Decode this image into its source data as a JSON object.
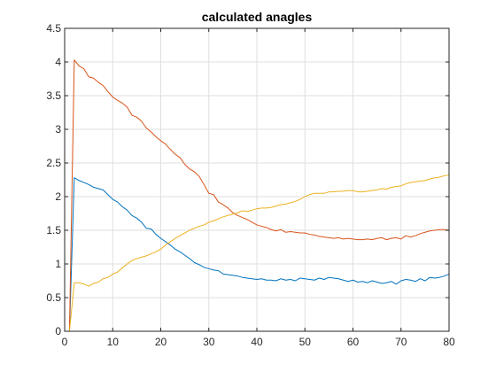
{
  "chart_data": {
    "type": "line",
    "title": "calculated anagles",
    "xlabel": "",
    "ylabel": "",
    "xlim": [
      0,
      80
    ],
    "ylim": [
      0,
      4.5
    ],
    "x_ticks": [
      0,
      10,
      20,
      30,
      40,
      50,
      60,
      70,
      80
    ],
    "y_ticks": [
      0,
      0.5,
      1,
      1.5,
      2,
      2.5,
      3,
      3.5,
      4,
      4.5
    ],
    "x_tick_labels": [
      "0",
      "10",
      "20",
      "30",
      "40",
      "50",
      "60",
      "70",
      "80"
    ],
    "y_tick_labels": [
      "0",
      "0.5",
      "1",
      "1.5",
      "2",
      "2.5",
      "3",
      "3.5",
      "4",
      "4.5"
    ],
    "grid": true,
    "legend": "none",
    "series": [
      {
        "color": "#0072BD",
        "x": [
          1,
          2,
          3,
          4,
          5,
          6,
          7,
          8,
          9,
          10,
          11,
          12,
          13,
          14,
          15,
          16,
          17,
          18,
          19,
          20,
          21,
          22,
          23,
          24,
          25,
          26,
          27,
          28,
          29,
          30,
          31,
          32,
          33,
          34,
          35,
          36,
          37,
          38,
          39,
          40,
          41,
          42,
          43,
          44,
          45,
          46,
          47,
          48,
          49,
          50,
          51,
          52,
          53,
          54,
          55,
          56,
          57,
          58,
          59,
          60,
          61,
          62,
          63,
          64,
          65,
          66,
          67,
          68,
          69,
          70,
          71,
          72,
          73,
          74,
          75,
          76,
          77,
          78,
          79,
          80
        ],
        "values": [
          0,
          2.28,
          2.24,
          2.21,
          2.18,
          2.14,
          2.12,
          2.1,
          2.03,
          1.96,
          1.92,
          1.85,
          1.8,
          1.72,
          1.68,
          1.62,
          1.53,
          1.52,
          1.44,
          1.38,
          1.33,
          1.28,
          1.22,
          1.18,
          1.13,
          1.08,
          1.02,
          0.99,
          0.95,
          0.93,
          0.91,
          0.9,
          0.85,
          0.84,
          0.83,
          0.82,
          0.8,
          0.79,
          0.78,
          0.77,
          0.78,
          0.76,
          0.76,
          0.75,
          0.78,
          0.76,
          0.77,
          0.75,
          0.79,
          0.78,
          0.77,
          0.76,
          0.79,
          0.77,
          0.8,
          0.79,
          0.78,
          0.76,
          0.74,
          0.76,
          0.73,
          0.74,
          0.72,
          0.75,
          0.73,
          0.71,
          0.72,
          0.74,
          0.7,
          0.75,
          0.77,
          0.76,
          0.74,
          0.78,
          0.75,
          0.8,
          0.79,
          0.8,
          0.82,
          0.85
        ]
      },
      {
        "color": "#D95319",
        "x": [
          1,
          2,
          3,
          4,
          5,
          6,
          7,
          8,
          9,
          10,
          11,
          12,
          13,
          14,
          15,
          16,
          17,
          18,
          19,
          20,
          21,
          22,
          23,
          24,
          25,
          26,
          27,
          28,
          29,
          30,
          31,
          32,
          33,
          34,
          35,
          36,
          37,
          38,
          39,
          40,
          41,
          42,
          43,
          44,
          45,
          46,
          47,
          48,
          49,
          50,
          51,
          52,
          53,
          54,
          55,
          56,
          57,
          58,
          59,
          60,
          61,
          62,
          63,
          64,
          65,
          66,
          67,
          68,
          69,
          70,
          71,
          72,
          73,
          74,
          75,
          76,
          77,
          78,
          79,
          80
        ],
        "values": [
          0,
          4.03,
          3.94,
          3.9,
          3.78,
          3.76,
          3.7,
          3.65,
          3.56,
          3.48,
          3.43,
          3.39,
          3.33,
          3.21,
          3.18,
          3.12,
          3.02,
          2.96,
          2.89,
          2.83,
          2.78,
          2.7,
          2.63,
          2.58,
          2.48,
          2.41,
          2.37,
          2.3,
          2.18,
          2.05,
          2.03,
          1.92,
          1.88,
          1.83,
          1.76,
          1.72,
          1.69,
          1.66,
          1.62,
          1.58,
          1.56,
          1.54,
          1.51,
          1.49,
          1.51,
          1.47,
          1.48,
          1.47,
          1.46,
          1.46,
          1.44,
          1.43,
          1.41,
          1.4,
          1.39,
          1.38,
          1.39,
          1.37,
          1.38,
          1.37,
          1.36,
          1.36,
          1.37,
          1.36,
          1.38,
          1.39,
          1.36,
          1.38,
          1.39,
          1.37,
          1.42,
          1.4,
          1.42,
          1.45,
          1.47,
          1.49,
          1.5,
          1.51,
          1.51,
          1.5
        ]
      },
      {
        "color": "#EDB120",
        "x": [
          1,
          2,
          3,
          4,
          5,
          6,
          7,
          8,
          9,
          10,
          11,
          12,
          13,
          14,
          15,
          16,
          17,
          18,
          19,
          20,
          21,
          22,
          23,
          24,
          25,
          26,
          27,
          28,
          29,
          30,
          31,
          32,
          33,
          34,
          35,
          36,
          37,
          38,
          39,
          40,
          41,
          42,
          43,
          44,
          45,
          46,
          47,
          48,
          49,
          50,
          51,
          52,
          53,
          54,
          55,
          56,
          57,
          58,
          59,
          60,
          61,
          62,
          63,
          64,
          65,
          66,
          67,
          68,
          69,
          70,
          71,
          72,
          73,
          74,
          75,
          76,
          77,
          78,
          79,
          80
        ],
        "values": [
          0,
          0.72,
          0.72,
          0.7,
          0.67,
          0.71,
          0.73,
          0.78,
          0.8,
          0.85,
          0.88,
          0.94,
          1.0,
          1.05,
          1.08,
          1.1,
          1.12,
          1.15,
          1.18,
          1.22,
          1.28,
          1.33,
          1.38,
          1.42,
          1.46,
          1.5,
          1.53,
          1.56,
          1.58,
          1.62,
          1.64,
          1.67,
          1.7,
          1.72,
          1.74,
          1.76,
          1.79,
          1.78,
          1.8,
          1.82,
          1.83,
          1.83,
          1.84,
          1.86,
          1.88,
          1.89,
          1.91,
          1.93,
          1.96,
          2.0,
          2.03,
          2.05,
          2.05,
          2.05,
          2.07,
          2.07,
          2.08,
          2.08,
          2.09,
          2.09,
          2.07,
          2.07,
          2.08,
          2.09,
          2.1,
          2.12,
          2.11,
          2.14,
          2.15,
          2.16,
          2.19,
          2.21,
          2.22,
          2.23,
          2.24,
          2.26,
          2.28,
          2.29,
          2.31,
          2.32
        ]
      }
    ]
  }
}
